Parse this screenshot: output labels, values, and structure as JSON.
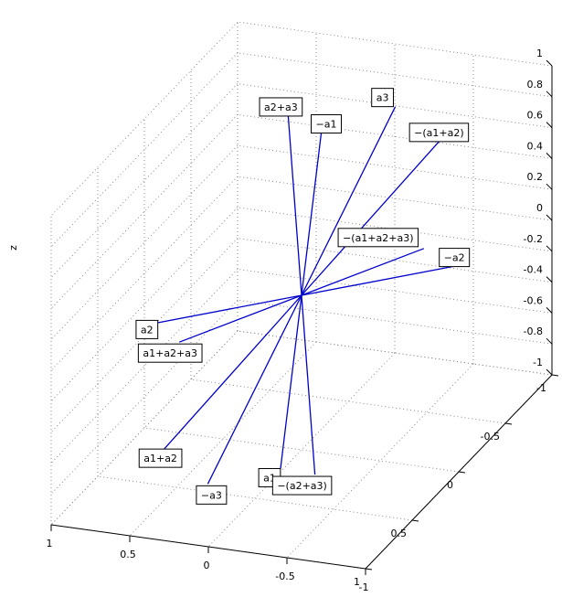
{
  "chart_data": {
    "type": "3d-vector-star",
    "zlabel": "z",
    "x_ticks": [
      "-1",
      "-0.5",
      "0",
      "0.5",
      "1"
    ],
    "y_ticks": [
      "-1",
      "-0.5",
      "0",
      "0.5",
      "1"
    ],
    "z_ticks": [
      "-1",
      "-0.8",
      "-0.6",
      "-0.4",
      "-0.2",
      "0",
      "0.2",
      "0.4",
      "0.6",
      "0.8",
      "1"
    ],
    "xlim": [
      -1,
      1
    ],
    "ylim": [
      -1,
      1
    ],
    "zlim": [
      -1,
      1
    ],
    "grid": true,
    "line_color": "#0000cc",
    "origin": [
      0,
      0,
      0
    ],
    "vectors": [
      {
        "label": "a1",
        "end": [
          0.9,
          -0.4,
          -0.5
        ]
      },
      {
        "label": "−a1",
        "end": [
          -0.9,
          0.4,
          0.5
        ]
      },
      {
        "label": "a2",
        "end": [
          0.2,
          0.9,
          -0.2
        ]
      },
      {
        "label": "−a2",
        "end": [
          -0.2,
          -0.9,
          0.2
        ]
      },
      {
        "label": "a3",
        "end": [
          -0.5,
          -0.3,
          0.95
        ]
      },
      {
        "label": "−a3",
        "end": [
          0.5,
          0.3,
          -0.95
        ]
      },
      {
        "label": "a1+a2",
        "end": [
          0.8,
          0.4,
          -0.55
        ]
      },
      {
        "label": "−(a1+a2)",
        "end": [
          -0.8,
          -0.4,
          0.55
        ]
      },
      {
        "label": "a2+a3",
        "end": [
          -0.7,
          0.5,
          0.65
        ]
      },
      {
        "label": "−(a2+a3)",
        "end": [
          0.7,
          -0.5,
          -0.65
        ]
      },
      {
        "label": "a1+a2+a3",
        "end": [
          0.3,
          0.6,
          -0.2
        ]
      },
      {
        "label": "−(a1+a2+a3)",
        "end": [
          -0.3,
          -0.6,
          0.2
        ]
      }
    ]
  }
}
